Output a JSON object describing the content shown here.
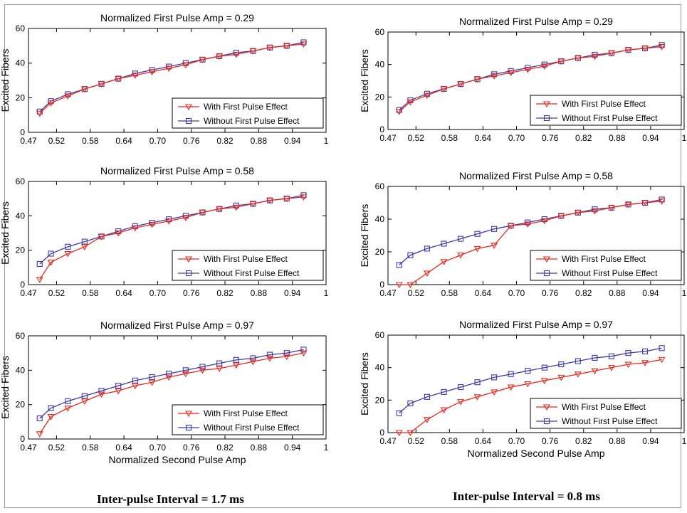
{
  "captions": {
    "left": "Inter-pulse Interval = 1.7 ms",
    "right": "Inter-pulse Interval = 0.8 ms"
  },
  "colors": {
    "with": "#e8281e",
    "without": "#3a3aa8"
  },
  "chart_data": [
    {
      "type": "line",
      "id": "left-top",
      "title": "Normalized First Pulse Amp = 0.29",
      "xlabel": "",
      "ylabel": "Excited Fibers",
      "xlim": [
        0.47,
        1
      ],
      "ylim": [
        0,
        60
      ],
      "xticks": [
        "0.47",
        "0.52",
        "0.58",
        "0.64",
        "0.70",
        "0.76",
        "0.82",
        "0.88",
        "0.94",
        "1"
      ],
      "yticks": [
        "0",
        "20",
        "40",
        "60"
      ],
      "legend": "bottom-right",
      "x": [
        0.49,
        0.51,
        0.54,
        0.57,
        0.6,
        0.63,
        0.66,
        0.69,
        0.72,
        0.75,
        0.78,
        0.81,
        0.84,
        0.87,
        0.9,
        0.93,
        0.96
      ],
      "series": [
        {
          "name": "With First Pulse Effect",
          "values": [
            11,
            17,
            21,
            25,
            28,
            31,
            33,
            35,
            37,
            39,
            42,
            44,
            45,
            47,
            49,
            50,
            51
          ]
        },
        {
          "name": "Without First Pulse Effect",
          "values": [
            12,
            18,
            22,
            25,
            28,
            31,
            34,
            36,
            38,
            40,
            42,
            44,
            46,
            47,
            49,
            50,
            52
          ]
        }
      ]
    },
    {
      "type": "line",
      "id": "right-top",
      "title": "Normalized First Pulse Amp = 0.29",
      "xlabel": "",
      "ylabel": "Excited Fibers",
      "xlim": [
        0.47,
        1
      ],
      "ylim": [
        0,
        60
      ],
      "xticks": [
        "0.47",
        "0.52",
        "0.58",
        "0.64",
        "0.70",
        "0.76",
        "0.82",
        "0.88",
        "0.94",
        "1"
      ],
      "yticks": [
        "0",
        "20",
        "40",
        "60"
      ],
      "legend": "bottom-right",
      "x": [
        0.49,
        0.51,
        0.54,
        0.57,
        0.6,
        0.63,
        0.66,
        0.69,
        0.72,
        0.75,
        0.78,
        0.81,
        0.84,
        0.87,
        0.9,
        0.93,
        0.96
      ],
      "series": [
        {
          "name": "With First Pulse Effect",
          "values": [
            11,
            17,
            21,
            25,
            28,
            31,
            33,
            35,
            37,
            39,
            42,
            44,
            45,
            47,
            49,
            50,
            51
          ]
        },
        {
          "name": "Without First Pulse Effect",
          "values": [
            12,
            18,
            22,
            25,
            28,
            31,
            34,
            36,
            38,
            40,
            42,
            44,
            46,
            47,
            49,
            50,
            52
          ]
        }
      ]
    },
    {
      "type": "line",
      "id": "left-mid",
      "title": "Normalized First Pulse Amp = 0.58",
      "xlabel": "",
      "ylabel": "Excited Fibers",
      "xlim": [
        0.47,
        1
      ],
      "ylim": [
        0,
        60
      ],
      "xticks": [
        "0.47",
        "0.52",
        "0.58",
        "0.64",
        "0.70",
        "0.76",
        "0.82",
        "0.88",
        "0.94",
        "1"
      ],
      "yticks": [
        "0",
        "20",
        "40",
        "60"
      ],
      "legend": "bottom-right",
      "x": [
        0.49,
        0.51,
        0.54,
        0.57,
        0.6,
        0.63,
        0.66,
        0.69,
        0.72,
        0.75,
        0.78,
        0.81,
        0.84,
        0.87,
        0.9,
        0.93,
        0.96
      ],
      "series": [
        {
          "name": "With First Pulse Effect",
          "values": [
            3,
            13,
            18,
            22,
            28,
            30,
            33,
            35,
            37,
            39,
            42,
            44,
            45,
            47,
            49,
            50,
            51
          ]
        },
        {
          "name": "Without First Pulse Effect",
          "values": [
            12,
            18,
            22,
            25,
            28,
            31,
            34,
            36,
            38,
            40,
            42,
            44,
            46,
            47,
            49,
            50,
            52
          ]
        }
      ]
    },
    {
      "type": "line",
      "id": "right-mid",
      "title": "Normalized First Pulse Amp = 0.58",
      "xlabel": "",
      "ylabel": "Excited Fibers",
      "xlim": [
        0.47,
        1
      ],
      "ylim": [
        0,
        60
      ],
      "xticks": [
        "0.47",
        "0.52",
        "0.58",
        "0.64",
        "0.70",
        "0.76",
        "0.82",
        "0.88",
        "0.94",
        "1"
      ],
      "yticks": [
        "0",
        "20",
        "40",
        "60"
      ],
      "legend": "bottom-right",
      "x": [
        0.49,
        0.51,
        0.54,
        0.57,
        0.6,
        0.63,
        0.66,
        0.69,
        0.72,
        0.75,
        0.78,
        0.81,
        0.84,
        0.87,
        0.9,
        0.93,
        0.96
      ],
      "series": [
        {
          "name": "With First Pulse Effect",
          "values": [
            0,
            0,
            7,
            14,
            18,
            22,
            24,
            36,
            37,
            39,
            42,
            44,
            45,
            47,
            49,
            50,
            51
          ]
        },
        {
          "name": "Without First Pulse Effect",
          "values": [
            12,
            18,
            22,
            25,
            28,
            31,
            34,
            36,
            38,
            40,
            42,
            44,
            46,
            47,
            49,
            50,
            52
          ]
        }
      ]
    },
    {
      "type": "line",
      "id": "left-bot",
      "title": "Normalized First Pulse Amp = 0.97",
      "xlabel": "Normalized Second Pulse Amp",
      "ylabel": "Excited Fibers",
      "xlim": [
        0.47,
        1
      ],
      "ylim": [
        0,
        60
      ],
      "xticks": [
        "0.47",
        "0.52",
        "0.58",
        "0.64",
        "0.70",
        "0.76",
        "0.82",
        "0.88",
        "0.94",
        "1"
      ],
      "yticks": [
        "0",
        "20",
        "40",
        "60"
      ],
      "legend": "bottom-right",
      "x": [
        0.49,
        0.51,
        0.54,
        0.57,
        0.6,
        0.63,
        0.66,
        0.69,
        0.72,
        0.75,
        0.78,
        0.81,
        0.84,
        0.87,
        0.9,
        0.93,
        0.96
      ],
      "series": [
        {
          "name": "With First Pulse Effect",
          "values": [
            3,
            13,
            18,
            22,
            26,
            28,
            31,
            33,
            36,
            38,
            40,
            41,
            43,
            45,
            47,
            48,
            50
          ]
        },
        {
          "name": "Without First Pulse Effect",
          "values": [
            12,
            18,
            22,
            25,
            28,
            31,
            34,
            36,
            38,
            40,
            42,
            44,
            46,
            47,
            49,
            50,
            52
          ]
        }
      ]
    },
    {
      "type": "line",
      "id": "right-bot",
      "title": "Normalized First Pulse Amp = 0.97",
      "xlabel": "Normalized Second Pulse Amp",
      "ylabel": "Excited Fibers",
      "xlim": [
        0.47,
        1
      ],
      "ylim": [
        0,
        60
      ],
      "xticks": [
        "0.47",
        "0.52",
        "0.58",
        "0.64",
        "0.70",
        "0.76",
        "0.82",
        "0.88",
        "0.94",
        "1"
      ],
      "yticks": [
        "0",
        "20",
        "40",
        "60"
      ],
      "legend": "bottom-right",
      "x": [
        0.49,
        0.51,
        0.54,
        0.57,
        0.6,
        0.63,
        0.66,
        0.69,
        0.72,
        0.75,
        0.78,
        0.81,
        0.84,
        0.87,
        0.9,
        0.93,
        0.96
      ],
      "series": [
        {
          "name": "With First Pulse Effect",
          "values": [
            0,
            0,
            8,
            14,
            19,
            22,
            25,
            28,
            30,
            32,
            34,
            36,
            38,
            40,
            42,
            43,
            45
          ]
        },
        {
          "name": "Without First Pulse Effect",
          "values": [
            12,
            18,
            22,
            25,
            28,
            31,
            34,
            36,
            38,
            40,
            42,
            44,
            46,
            47,
            49,
            50,
            52
          ]
        }
      ]
    }
  ]
}
